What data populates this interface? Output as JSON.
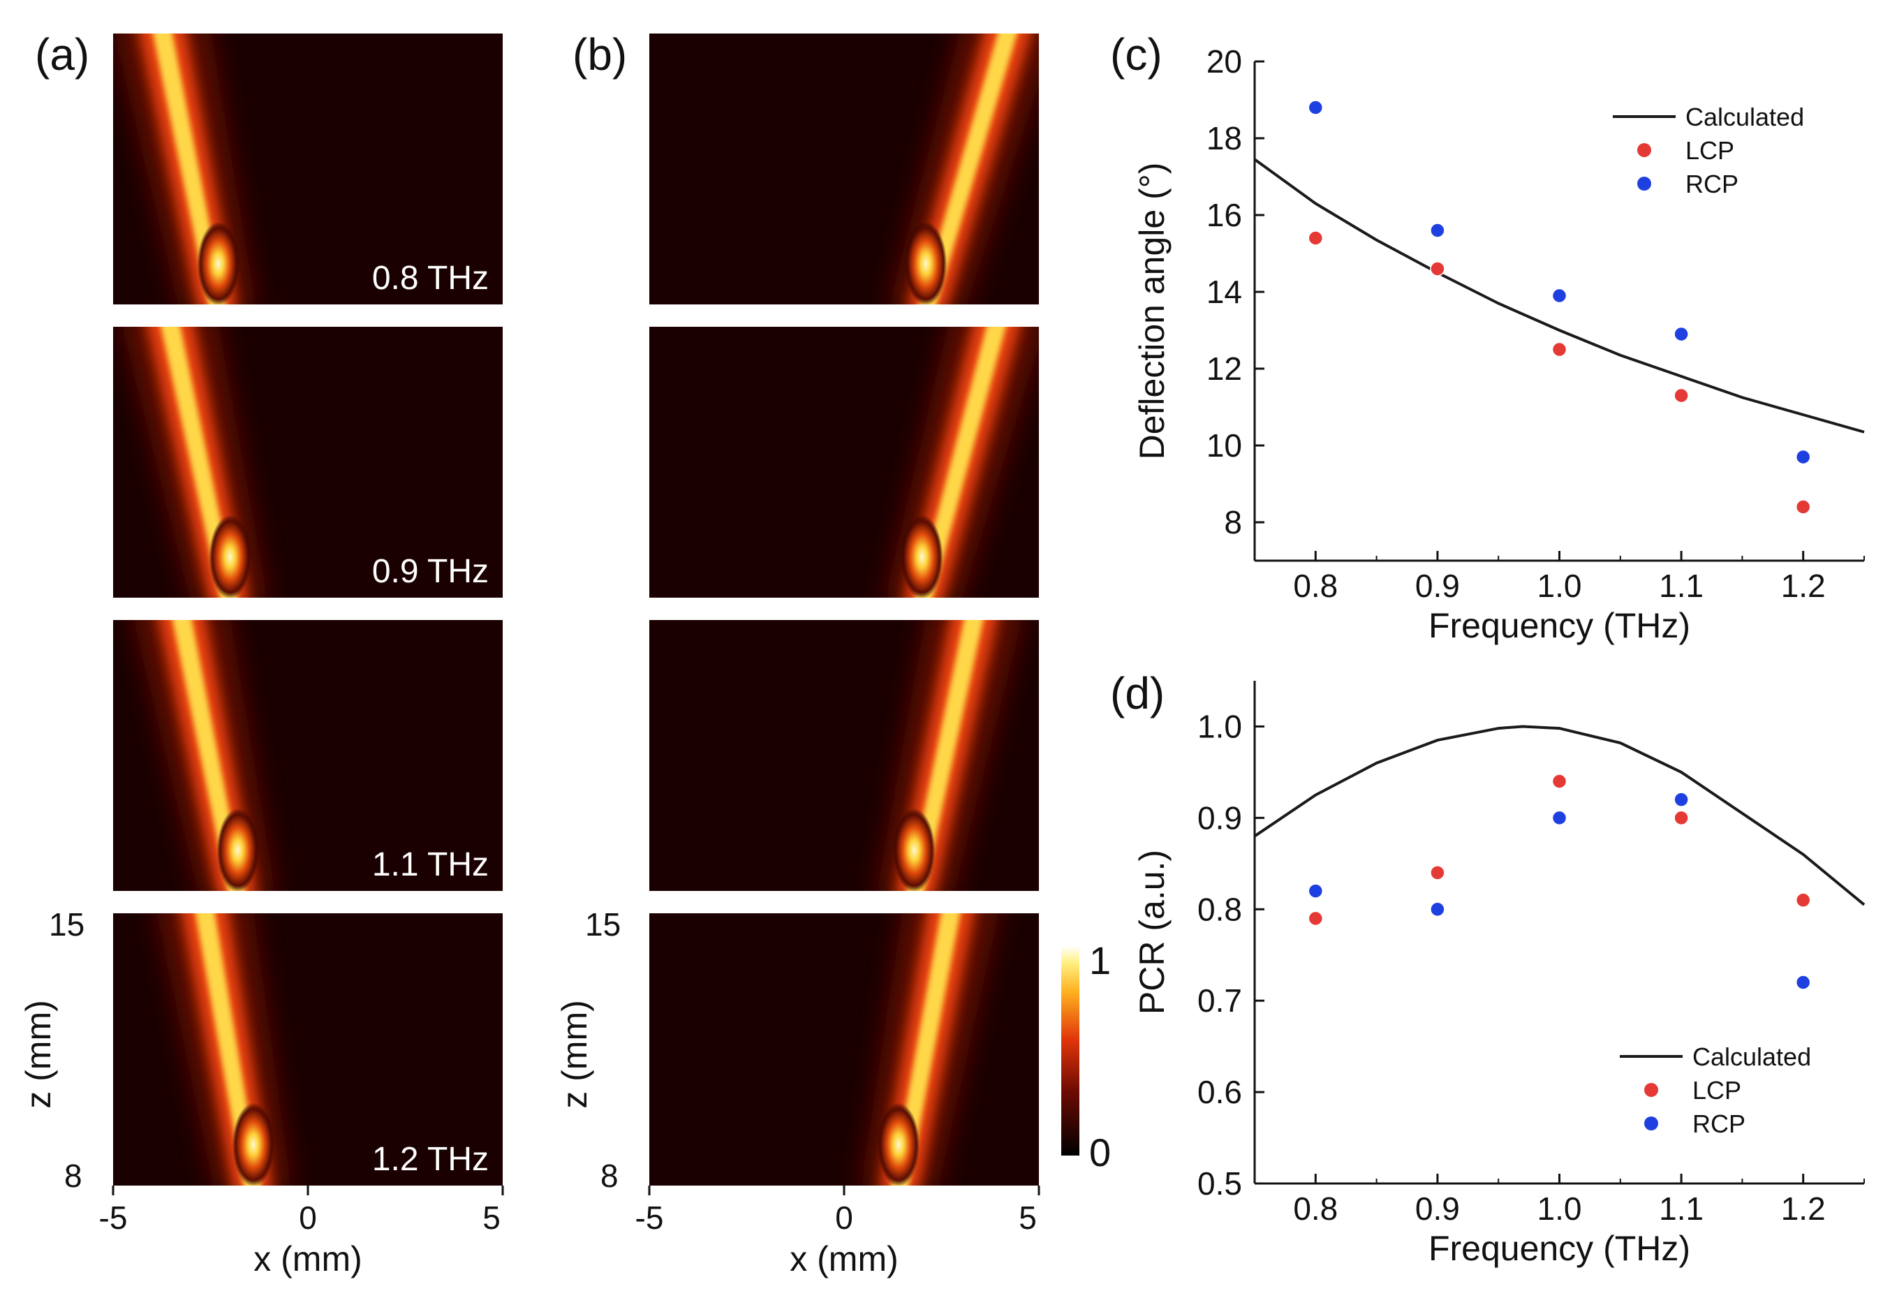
{
  "chart_data": [
    {
      "panel": "(a)",
      "type": "heatmap",
      "description": "Field intensity maps (LCP) for four frequencies",
      "frequency_labels": [
        "0.8 THz",
        "0.9 THz",
        "1.1 THz",
        "1.2 THz"
      ],
      "beam_center_x_mm": [
        -2.3,
        -2.0,
        -1.8,
        -1.4
      ],
      "beam_center_x_top_mm": [
        -3.8,
        -3.6,
        -3.3,
        -2.7
      ],
      "xlabel": "x (mm)",
      "ylabel": "z (mm)",
      "xticks": [
        "-5",
        "0",
        "5"
      ],
      "yticks": [
        "15",
        "8"
      ],
      "xlim": [
        -5,
        5
      ],
      "zlim": [
        8,
        15
      ]
    },
    {
      "panel": "(b)",
      "type": "heatmap",
      "description": "Field intensity maps (RCP) for four frequencies",
      "beam_center_x_mm": [
        2.1,
        2.0,
        1.8,
        1.4
      ],
      "beam_center_x_top_mm": [
        4.3,
        4.0,
        3.4,
        2.8
      ],
      "xlabel": "x (mm)",
      "ylabel": "z (mm)",
      "xticks": [
        "-5",
        "0",
        "5"
      ],
      "yticks": [
        "15",
        "8"
      ],
      "xlim": [
        -5,
        5
      ],
      "zlim": [
        8,
        15
      ],
      "colorbar": {
        "min_label": "0",
        "max_label": "1",
        "range": [
          0,
          1
        ]
      }
    },
    {
      "panel": "(c)",
      "type": "scatter",
      "xlabel": "Frequency (THz)",
      "ylabel": "Deflection angle (°)",
      "xlim": [
        0.75,
        1.25
      ],
      "ylim": [
        7,
        20
      ],
      "xticks": [
        "0.8",
        "0.9",
        "1.0",
        "1.1",
        "1.2"
      ],
      "yticks": [
        "8",
        "10",
        "12",
        "14",
        "16",
        "18",
        "20"
      ],
      "series": [
        {
          "name": "Calculated",
          "kind": "line",
          "color": "#1a1a1a",
          "x": [
            0.75,
            0.8,
            0.85,
            0.9,
            0.95,
            1.0,
            1.05,
            1.1,
            1.15,
            1.2,
            1.25
          ],
          "y": [
            17.45,
            16.3,
            15.35,
            14.5,
            13.7,
            13.0,
            12.35,
            11.8,
            11.25,
            10.8,
            10.35
          ]
        },
        {
          "name": "LCP",
          "kind": "points",
          "color": "#e53935",
          "x": [
            0.8,
            0.9,
            1.0,
            1.1,
            1.2
          ],
          "y": [
            15.4,
            14.6,
            12.5,
            11.3,
            8.4
          ]
        },
        {
          "name": "RCP",
          "kind": "points",
          "color": "#1e40e0",
          "x": [
            0.8,
            0.9,
            1.0,
            1.1,
            1.2
          ],
          "y": [
            18.8,
            15.6,
            13.9,
            12.9,
            9.7
          ]
        }
      ],
      "legend": [
        "Calculated",
        "LCP",
        "RCP"
      ],
      "legend_position": "top-right"
    },
    {
      "panel": "(d)",
      "type": "scatter",
      "xlabel": "Frequency (THz)",
      "ylabel": "PCR (a.u.)",
      "xlim": [
        0.75,
        1.25
      ],
      "ylim": [
        0.5,
        1.05
      ],
      "xticks": [
        "0.8",
        "0.9",
        "1.0",
        "1.1",
        "1.2"
      ],
      "yticks": [
        "0.5",
        "0.6",
        "0.7",
        "0.8",
        "0.9",
        "1.0"
      ],
      "series": [
        {
          "name": "Calculated",
          "kind": "line",
          "color": "#1a1a1a",
          "x": [
            0.75,
            0.8,
            0.85,
            0.9,
            0.95,
            0.97,
            1.0,
            1.05,
            1.1,
            1.15,
            1.2,
            1.25
          ],
          "y": [
            0.88,
            0.925,
            0.96,
            0.985,
            0.998,
            1.0,
            0.998,
            0.982,
            0.95,
            0.905,
            0.86,
            0.805
          ]
        },
        {
          "name": "LCP",
          "kind": "points",
          "color": "#e53935",
          "x": [
            0.8,
            0.9,
            1.0,
            1.1,
            1.2
          ],
          "y": [
            0.79,
            0.84,
            0.94,
            0.9,
            0.81
          ]
        },
        {
          "name": "RCP",
          "kind": "points",
          "color": "#1e40e0",
          "x": [
            0.8,
            0.9,
            1.0,
            1.1,
            1.2
          ],
          "y": [
            0.82,
            0.8,
            0.9,
            0.92,
            0.72
          ]
        }
      ],
      "legend": [
        "Calculated",
        "LCP",
        "RCP"
      ],
      "legend_position": "bottom-right"
    }
  ]
}
